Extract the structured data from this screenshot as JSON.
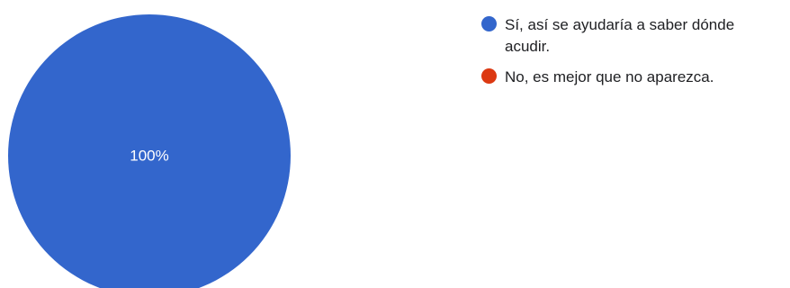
{
  "chart_data": {
    "type": "pie",
    "categories": [
      "Sí, así se ayudaría a saber dónde acudir.",
      "No, es mejor que no aparezca."
    ],
    "values": [
      100,
      0
    ],
    "data_labels": [
      "100%",
      ""
    ],
    "colors": [
      "#3366cc",
      "#dc3912"
    ],
    "legend_position": "right"
  }
}
